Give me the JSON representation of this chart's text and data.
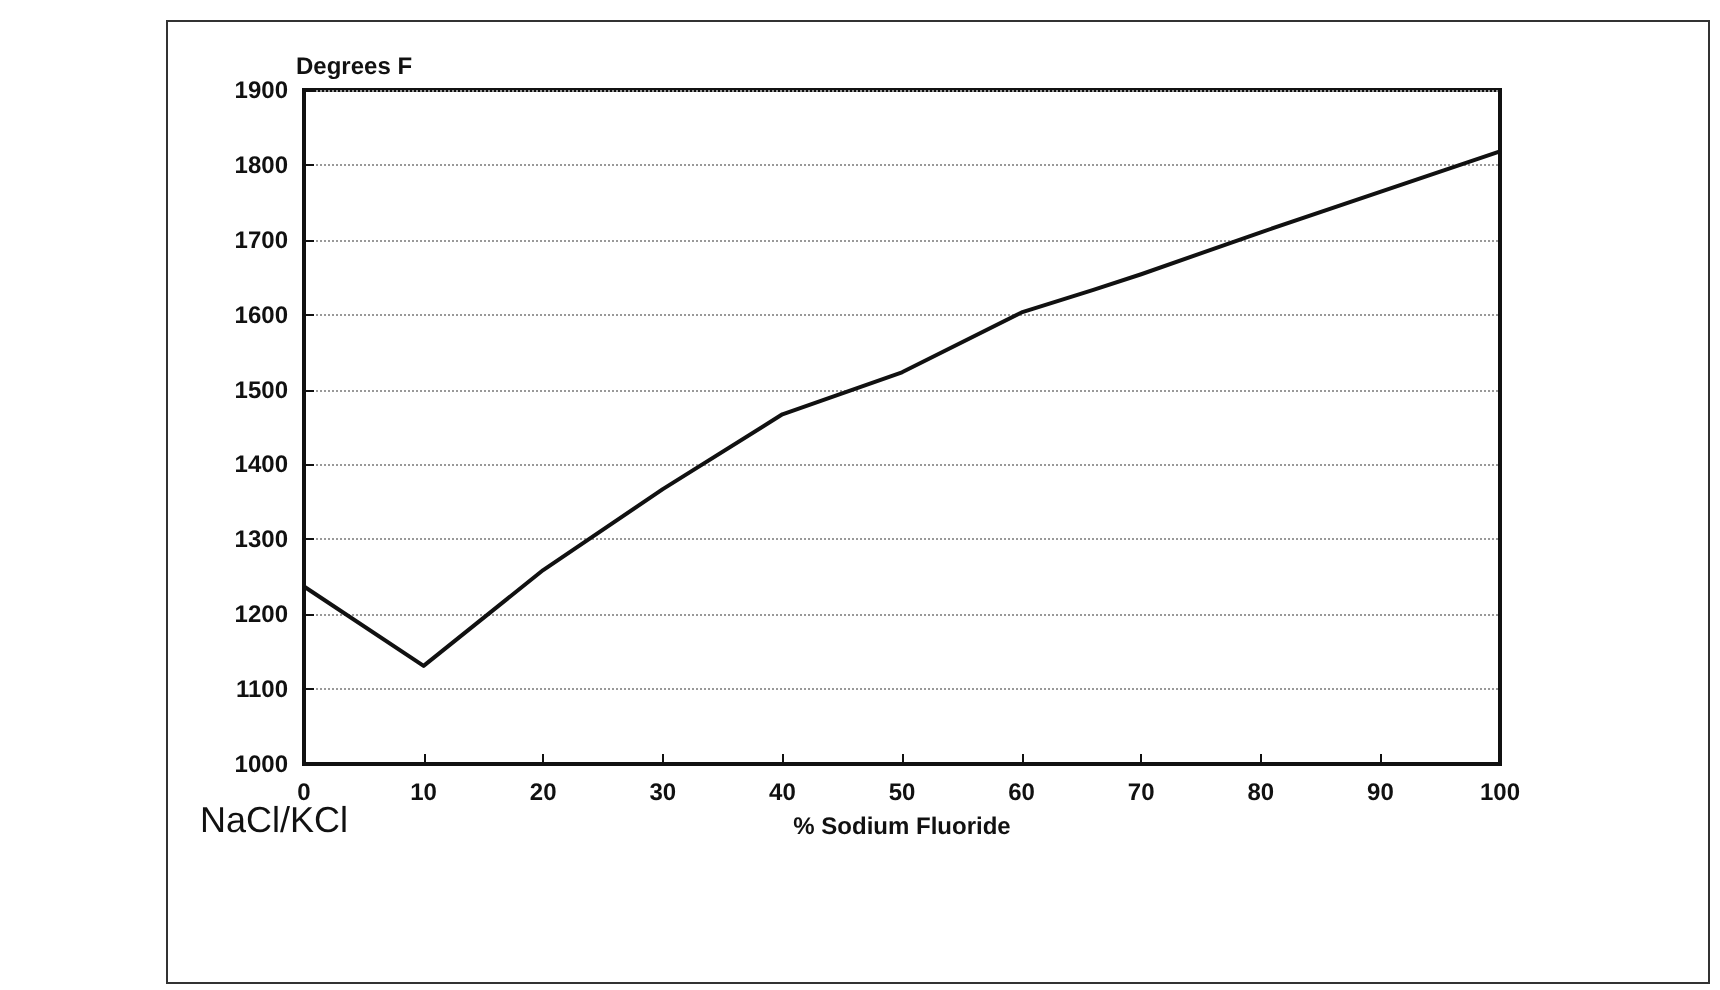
{
  "chart_data": {
    "type": "line",
    "ylabel": "Degrees F",
    "xlabel": "% Sodium Fluoride",
    "annotations": [
      "NaCl/KCl"
    ],
    "x": [
      0,
      10,
      20,
      30,
      40,
      50,
      60,
      66,
      70,
      80,
      100
    ],
    "series": [
      {
        "color": "#111111",
        "values": [
          1237,
          1131,
          1259,
          1367,
          1467,
          1523,
          1603,
          1633,
          1654,
          1710,
          1818
        ]
      }
    ],
    "xlim": [
      0,
      100
    ],
    "xticks": [
      0,
      10,
      20,
      30,
      40,
      50,
      60,
      70,
      80,
      90,
      100
    ],
    "ylim": [
      1000,
      1900
    ],
    "yticks": [
      1000,
      1100,
      1200,
      1300,
      1400,
      1500,
      1600,
      1700,
      1800,
      1900
    ],
    "grid": "y",
    "marker": "none",
    "line_style": "solid"
  }
}
